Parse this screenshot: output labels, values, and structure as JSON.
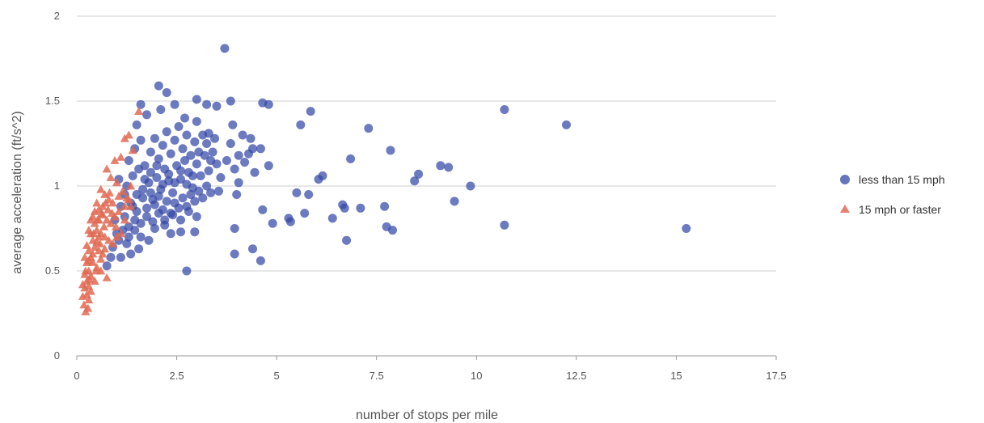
{
  "chart_data": {
    "type": "scatter",
    "xlabel": "number of stops per mile",
    "ylabel": "average acceleration (ft/s^2)",
    "xlim": [
      0,
      17.5
    ],
    "ylim": [
      0,
      2
    ],
    "x_ticks": [
      "0",
      "2.5",
      "5",
      "7.5",
      "10",
      "12.5",
      "15",
      "17.5"
    ],
    "y_ticks": [
      "0",
      "0.5",
      "1",
      "1.5",
      "2"
    ],
    "grid": "horizontal",
    "legend_position": "right",
    "series": [
      {
        "name": "less than 15 mph",
        "marker": "circle",
        "color": "#3346a6",
        "points": [
          [
            3.7,
            1.81
          ],
          [
            2.05,
            1.59
          ],
          [
            2.25,
            1.55
          ],
          [
            3.0,
            1.51
          ],
          [
            2.45,
            1.48
          ],
          [
            3.25,
            1.48
          ],
          [
            3.85,
            1.5
          ],
          [
            4.65,
            1.49
          ],
          [
            4.8,
            1.48
          ],
          [
            3.5,
            1.47
          ],
          [
            5.85,
            1.44
          ],
          [
            10.7,
            1.45
          ],
          [
            2.1,
            1.45
          ],
          [
            2.7,
            1.4
          ],
          [
            3.0,
            1.38
          ],
          [
            3.9,
            1.36
          ],
          [
            5.6,
            1.36
          ],
          [
            12.25,
            1.36
          ],
          [
            7.3,
            1.34
          ],
          [
            3.3,
            1.31
          ],
          [
            1.6,
            1.48
          ],
          [
            1.75,
            1.42
          ],
          [
            4.15,
            1.3
          ],
          [
            4.4,
            1.22
          ],
          [
            4.35,
            1.28
          ],
          [
            7.85,
            1.21
          ],
          [
            4.6,
            1.22
          ],
          [
            6.85,
            1.16
          ],
          [
            4.05,
            1.18
          ],
          [
            4.8,
            1.12
          ],
          [
            9.1,
            1.12
          ],
          [
            9.3,
            1.11
          ],
          [
            8.55,
            1.07
          ],
          [
            6.15,
            1.06
          ],
          [
            6.05,
            1.04
          ],
          [
            8.45,
            1.03
          ],
          [
            9.85,
            1.0
          ],
          [
            3.55,
            0.97
          ],
          [
            5.5,
            0.96
          ],
          [
            5.8,
            0.95
          ],
          [
            4.0,
            0.95
          ],
          [
            9.45,
            0.91
          ],
          [
            6.65,
            0.89
          ],
          [
            6.7,
            0.87
          ],
          [
            7.1,
            0.87
          ],
          [
            7.7,
            0.88
          ],
          [
            5.7,
            0.84
          ],
          [
            6.4,
            0.81
          ],
          [
            5.3,
            0.81
          ],
          [
            5.35,
            0.79
          ],
          [
            4.65,
            0.86
          ],
          [
            4.9,
            0.78
          ],
          [
            3.95,
            0.75
          ],
          [
            2.95,
            0.73
          ],
          [
            10.7,
            0.77
          ],
          [
            15.25,
            0.75
          ],
          [
            7.75,
            0.76
          ],
          [
            7.9,
            0.74
          ],
          [
            6.75,
            0.68
          ],
          [
            4.4,
            0.63
          ],
          [
            3.95,
            0.6
          ],
          [
            4.6,
            0.56
          ],
          [
            2.75,
            0.5
          ],
          [
            2.35,
            0.72
          ],
          [
            2.6,
            0.73
          ],
          [
            1.55,
            0.63
          ],
          [
            1.35,
            0.6
          ],
          [
            1.1,
            0.58
          ],
          [
            1.6,
            0.7
          ],
          [
            1.25,
            0.66
          ],
          [
            0.9,
            0.64
          ],
          [
            0.75,
            0.53
          ],
          [
            0.85,
            0.58
          ],
          [
            1.3,
            0.7
          ],
          [
            1.8,
            0.68
          ],
          [
            1.95,
            0.75
          ],
          [
            2.2,
            0.8
          ],
          [
            1.45,
            0.74
          ],
          [
            1.05,
            0.68
          ],
          [
            1.4,
            0.88
          ],
          [
            1.5,
            0.95
          ],
          [
            1.65,
            0.98
          ],
          [
            1.8,
            1.02
          ],
          [
            1.9,
            0.92
          ],
          [
            2.0,
            1.05
          ],
          [
            2.1,
            0.98
          ],
          [
            2.2,
            1.1
          ],
          [
            2.3,
            1.03
          ],
          [
            2.4,
            0.96
          ],
          [
            2.5,
            1.12
          ],
          [
            2.6,
            1.04
          ],
          [
            2.7,
            1.15
          ],
          [
            2.8,
            1.08
          ],
          [
            2.9,
            0.99
          ],
          [
            3.0,
            1.13
          ],
          [
            3.1,
            1.06
          ],
          [
            3.2,
            1.18
          ],
          [
            3.3,
            1.09
          ],
          [
            3.4,
            1.2
          ],
          [
            3.5,
            1.13
          ],
          [
            3.6,
            1.05
          ],
          [
            3.75,
            1.15
          ],
          [
            3.85,
            1.25
          ],
          [
            3.95,
            1.1
          ],
          [
            4.05,
            1.02
          ],
          [
            4.2,
            1.14
          ],
          [
            4.3,
            1.19
          ],
          [
            4.45,
            1.08
          ],
          [
            1.7,
            1.12
          ],
          [
            1.85,
            1.2
          ],
          [
            1.95,
            1.28
          ],
          [
            2.05,
            1.16
          ],
          [
            2.15,
            1.24
          ],
          [
            2.25,
            1.32
          ],
          [
            2.35,
            1.19
          ],
          [
            2.45,
            1.27
          ],
          [
            2.55,
            1.35
          ],
          [
            2.65,
            1.22
          ],
          [
            2.75,
            1.3
          ],
          [
            2.85,
            1.18
          ],
          [
            2.95,
            1.26
          ],
          [
            3.05,
            1.2
          ],
          [
            3.15,
            1.3
          ],
          [
            3.25,
            1.25
          ],
          [
            3.35,
            1.15
          ],
          [
            3.45,
            1.28
          ],
          [
            1.2,
            0.82
          ],
          [
            1.35,
            0.9
          ],
          [
            1.5,
            0.85
          ],
          [
            1.65,
            0.93
          ],
          [
            1.75,
            0.87
          ],
          [
            1.85,
            0.96
          ],
          [
            1.95,
            0.89
          ],
          [
            2.05,
            0.94
          ],
          [
            2.15,
            0.86
          ],
          [
            2.25,
            0.91
          ],
          [
            2.35,
            0.84
          ],
          [
            2.45,
            0.9
          ],
          [
            2.55,
            0.87
          ],
          [
            2.65,
            0.93
          ],
          [
            2.75,
            0.88
          ],
          [
            2.85,
            0.95
          ],
          [
            2.95,
            0.91
          ],
          [
            3.05,
            0.97
          ],
          [
            3.15,
            0.93
          ],
          [
            3.25,
            1.0
          ],
          [
            3.35,
            0.96
          ],
          [
            1.25,
            1.0
          ],
          [
            1.4,
            1.06
          ],
          [
            1.55,
            1.1
          ],
          [
            1.7,
            1.04
          ],
          [
            1.85,
            1.08
          ],
          [
            2.0,
            1.12
          ],
          [
            2.15,
            1.01
          ],
          [
            2.3,
            1.07
          ],
          [
            2.45,
            1.02
          ],
          [
            2.6,
            1.09
          ],
          [
            2.75,
            1.01
          ],
          [
            2.9,
            1.06
          ],
          [
            1.3,
            0.76
          ],
          [
            1.45,
            0.8
          ],
          [
            1.6,
            0.78
          ],
          [
            1.75,
            0.82
          ],
          [
            1.9,
            0.79
          ],
          [
            2.05,
            0.84
          ],
          [
            2.2,
            0.77
          ],
          [
            2.4,
            0.83
          ],
          [
            2.6,
            0.8
          ],
          [
            2.8,
            0.85
          ],
          [
            3.0,
            0.82
          ],
          [
            1.15,
            0.74
          ],
          [
            1.0,
            0.72
          ],
          [
            0.95,
            0.8
          ],
          [
            1.1,
            0.88
          ],
          [
            1.2,
            0.95
          ],
          [
            1.05,
            1.04
          ],
          [
            1.3,
            1.15
          ],
          [
            1.45,
            1.22
          ],
          [
            1.6,
            1.27
          ],
          [
            1.5,
            1.36
          ]
        ]
      },
      {
        "name": "15 mph or faster",
        "marker": "triangle",
        "color": "#e06a52",
        "points": [
          [
            1.55,
            1.44
          ],
          [
            1.3,
            1.3
          ],
          [
            1.4,
            1.21
          ],
          [
            1.1,
            1.17
          ],
          [
            1.2,
            1.28
          ],
          [
            0.95,
            1.15
          ],
          [
            0.75,
            1.1
          ],
          [
            0.85,
            1.05
          ],
          [
            1.0,
            1.02
          ],
          [
            0.6,
            0.98
          ],
          [
            0.7,
            0.95
          ],
          [
            0.8,
            0.92
          ],
          [
            0.9,
            0.9
          ],
          [
            1.05,
            0.94
          ],
          [
            1.15,
            0.97
          ],
          [
            1.25,
            0.93
          ],
          [
            1.35,
            0.88
          ],
          [
            0.5,
            0.9
          ],
          [
            0.55,
            0.86
          ],
          [
            0.65,
            0.83
          ],
          [
            0.75,
            0.8
          ],
          [
            0.85,
            0.78
          ],
          [
            0.95,
            0.82
          ],
          [
            1.05,
            0.85
          ],
          [
            1.2,
            0.8
          ],
          [
            0.4,
            0.82
          ],
          [
            0.45,
            0.78
          ],
          [
            0.5,
            0.74
          ],
          [
            0.6,
            0.72
          ],
          [
            0.7,
            0.7
          ],
          [
            0.8,
            0.68
          ],
          [
            0.9,
            0.66
          ],
          [
            1.0,
            0.7
          ],
          [
            0.35,
            0.72
          ],
          [
            0.4,
            0.68
          ],
          [
            0.45,
            0.64
          ],
          [
            0.55,
            0.62
          ],
          [
            0.65,
            0.6
          ],
          [
            0.3,
            0.62
          ],
          [
            0.35,
            0.58
          ],
          [
            0.4,
            0.55
          ],
          [
            0.5,
            0.52
          ],
          [
            0.6,
            0.5
          ],
          [
            0.75,
            0.46
          ],
          [
            0.25,
            0.55
          ],
          [
            0.3,
            0.5
          ],
          [
            0.35,
            0.47
          ],
          [
            0.45,
            0.44
          ],
          [
            0.2,
            0.48
          ],
          [
            0.25,
            0.44
          ],
          [
            0.3,
            0.41
          ],
          [
            0.35,
            0.38
          ],
          [
            0.2,
            0.4
          ],
          [
            0.25,
            0.36
          ],
          [
            0.3,
            0.33
          ],
          [
            0.15,
            0.35
          ],
          [
            0.18,
            0.3
          ],
          [
            0.22,
            0.26
          ],
          [
            0.28,
            0.28
          ],
          [
            0.15,
            0.42
          ],
          [
            0.2,
            0.58
          ],
          [
            0.25,
            0.65
          ],
          [
            0.3,
            0.74
          ],
          [
            0.35,
            0.8
          ],
          [
            0.45,
            0.85
          ],
          [
            0.55,
            0.8
          ],
          [
            0.65,
            0.88
          ],
          [
            0.5,
            0.67
          ],
          [
            0.6,
            0.57
          ],
          [
            0.7,
            0.63
          ],
          [
            0.55,
            0.7
          ],
          [
            0.4,
            0.6
          ],
          [
            0.3,
            0.56
          ],
          [
            0.48,
            0.5
          ],
          [
            0.58,
            0.66
          ],
          [
            0.68,
            0.76
          ],
          [
            0.78,
            0.86
          ],
          [
            0.88,
            0.84
          ],
          [
            0.98,
            0.76
          ],
          [
            1.1,
            0.72
          ],
          [
            1.2,
            0.88
          ],
          [
            1.3,
            0.92
          ],
          [
            0.42,
            0.72
          ],
          [
            0.52,
            0.8
          ],
          [
            0.62,
            0.84
          ],
          [
            0.72,
            0.9
          ],
          [
            0.82,
            0.96
          ],
          [
            1.35,
            1.0
          ],
          [
            0.22,
            0.5
          ],
          [
            0.32,
            0.45
          ]
        ]
      }
    ]
  }
}
